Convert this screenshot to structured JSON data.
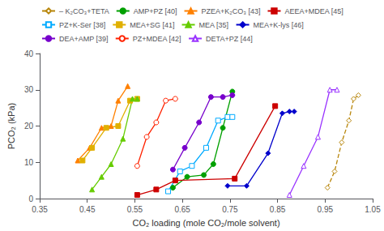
{
  "chart_data": {
    "type": "line",
    "xlabel": "CO₂ loading (mole CO₂/mole solvent)",
    "ylabel": "PCO₂ (kPa)",
    "xlim": [
      0.35,
      1.05
    ],
    "ylim": [
      0,
      40
    ],
    "xticks": [
      0.35,
      0.45,
      0.55,
      0.65,
      0.75,
      0.85,
      0.95,
      1.05
    ],
    "yticks": [
      0,
      10,
      20,
      30,
      40
    ],
    "grid": false,
    "legend": "upper left",
    "series": [
      {
        "name": "– K₂CO₃+TETA",
        "color": "#b8860b",
        "marker": "open_diamond",
        "line_style": "dashed",
        "x": [
          0.955,
          0.97,
          0.985,
          1.0,
          1.01,
          1.02
        ],
        "values": [
          3.0,
          7.5,
          15.5,
          21.5,
          27.5,
          28.5
        ]
      },
      {
        "name": "AMP+PZ [40]",
        "color": "#00a000",
        "marker": "circle",
        "line_style": "solid",
        "x": [
          0.63,
          0.66,
          0.695,
          0.715,
          0.735,
          0.755
        ],
        "values": [
          3.0,
          6.0,
          6.5,
          9.5,
          19.5,
          29.5
        ]
      },
      {
        "name": "PZEA+K₂CO₃ [43]",
        "color": "#ff8000",
        "marker": "triangle",
        "line_style": "solid",
        "x": [
          0.43,
          0.455,
          0.48,
          0.5,
          0.515,
          0.535
        ],
        "values": [
          10.5,
          14.0,
          19.5,
          20.0,
          27.0,
          31.0
        ]
      },
      {
        "name": "AEEA+MDEA [45]",
        "color": "#cc0000",
        "marker": "square",
        "line_style": "solid",
        "x": [
          0.555,
          0.595,
          0.635,
          0.76,
          0.845
        ],
        "values": [
          1.0,
          2.5,
          5.0,
          5.5,
          25.5
        ]
      },
      {
        "name": "PZ+K-Ser [38]",
        "color": "#00aaff",
        "marker": "open_square",
        "line_style": "solid",
        "x": [
          0.62,
          0.645,
          0.67,
          0.7,
          0.725,
          0.745,
          0.755
        ],
        "values": [
          2.0,
          7.5,
          9.0,
          14.0,
          21.5,
          22.5,
          22.5
        ]
      },
      {
        "name": "MEA+SG [41]",
        "color": "#e0b000",
        "marker": "square",
        "line_style": "solid",
        "x": [
          0.44,
          0.46,
          0.49,
          0.515,
          0.54,
          0.555
        ],
        "values": [
          10.5,
          14.0,
          19.5,
          20.0,
          27.0,
          27.5
        ]
      },
      {
        "name": "MEA [35]",
        "color": "#66cc00",
        "marker": "triangle",
        "line_style": "solid",
        "x": [
          0.46,
          0.48,
          0.5,
          0.525,
          0.545,
          0.555
        ],
        "values": [
          2.5,
          6.0,
          9.5,
          16.5,
          27.5,
          27.5
        ]
      },
      {
        "name": "MEA+K-lys [46]",
        "color": "#0000cc",
        "marker": "diamond",
        "line_style": "solid",
        "x": [
          0.745,
          0.785,
          0.83,
          0.86,
          0.875,
          0.885
        ],
        "values": [
          3.5,
          3.5,
          12.5,
          23.5,
          24.0,
          24.0
        ]
      },
      {
        "name": "DEA+AMP [39]",
        "color": "#7700cc",
        "marker": "circle",
        "line_style": "solid",
        "x": [
          0.63,
          0.655,
          0.685,
          0.71,
          0.735,
          0.755
        ],
        "values": [
          8.0,
          14.0,
          21.0,
          28.0,
          28.0,
          28.5
        ]
      },
      {
        "name": "PZ+MDEA [42]",
        "color": "#ff2200",
        "marker": "open_circle",
        "line_style": "solid",
        "x": [
          0.555,
          0.575,
          0.595,
          0.615,
          0.635
        ],
        "values": [
          9.0,
          17.0,
          21.0,
          27.0,
          27.5
        ]
      },
      {
        "name": "DETA+PZ [44]",
        "color": "#9933ff",
        "marker": "open_triangle",
        "line_style": "solid",
        "x": [
          0.875,
          0.905,
          0.935,
          0.96,
          0.975
        ],
        "values": [
          1.0,
          9.0,
          17.0,
          30.0,
          30.0
        ]
      }
    ]
  }
}
